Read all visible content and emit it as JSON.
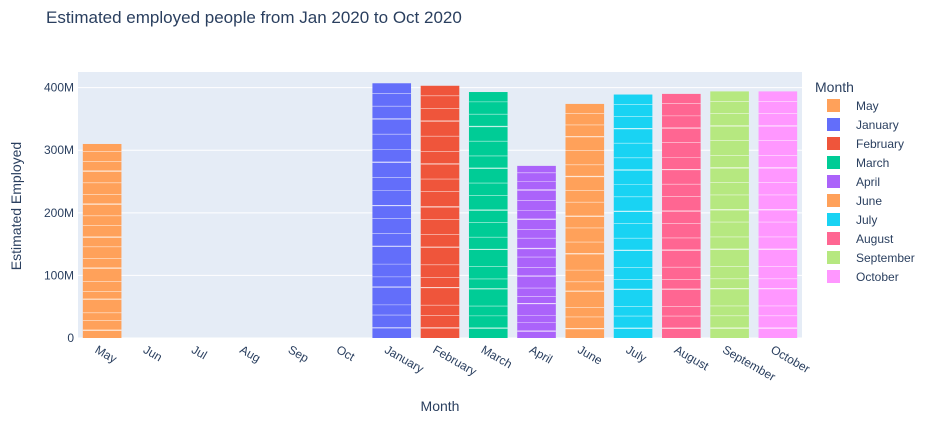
{
  "chart_data": {
    "type": "bar",
    "title": "Estimated employed people from Jan 2020 to Oct 2020",
    "xlabel": "Month",
    "ylabel": "Estimated Employed",
    "ylim": [
      0,
      425000000
    ],
    "yticks": [
      0,
      100000000,
      200000000,
      300000000,
      400000000
    ],
    "ytick_labels": [
      "0",
      "100M",
      "200M",
      "300M",
      "400M"
    ],
    "grid": true,
    "categories": [
      "May",
      "Jun",
      "Jul",
      "Aug",
      "Sep",
      "Oct",
      "January",
      "February",
      "March",
      "April",
      "June",
      "July",
      "August",
      "September",
      "October"
    ],
    "legend": {
      "title": "Month",
      "position": "right"
    },
    "series": [
      {
        "name": "May",
        "color": "#FFA15A",
        "category": "May",
        "value": 310000000
      },
      {
        "name": "January",
        "color": "#636EFA",
        "category": "January",
        "value": 407000000
      },
      {
        "name": "February",
        "color": "#EF553B",
        "category": "February",
        "value": 403000000
      },
      {
        "name": "March",
        "color": "#00CC96",
        "category": "March",
        "value": 393000000
      },
      {
        "name": "April",
        "color": "#AB63FA",
        "category": "April",
        "value": 275000000
      },
      {
        "name": "June",
        "color": "#FFA15A",
        "category": "June",
        "value": 374000000
      },
      {
        "name": "July",
        "color": "#19D3F3",
        "category": "July",
        "value": 389000000
      },
      {
        "name": "August",
        "color": "#FF6692",
        "category": "August",
        "value": 390000000
      },
      {
        "name": "September",
        "color": "#B6E880",
        "category": "September",
        "value": 394000000
      },
      {
        "name": "October",
        "color": "#FF97FF",
        "category": "October",
        "value": 394000000
      }
    ]
  }
}
